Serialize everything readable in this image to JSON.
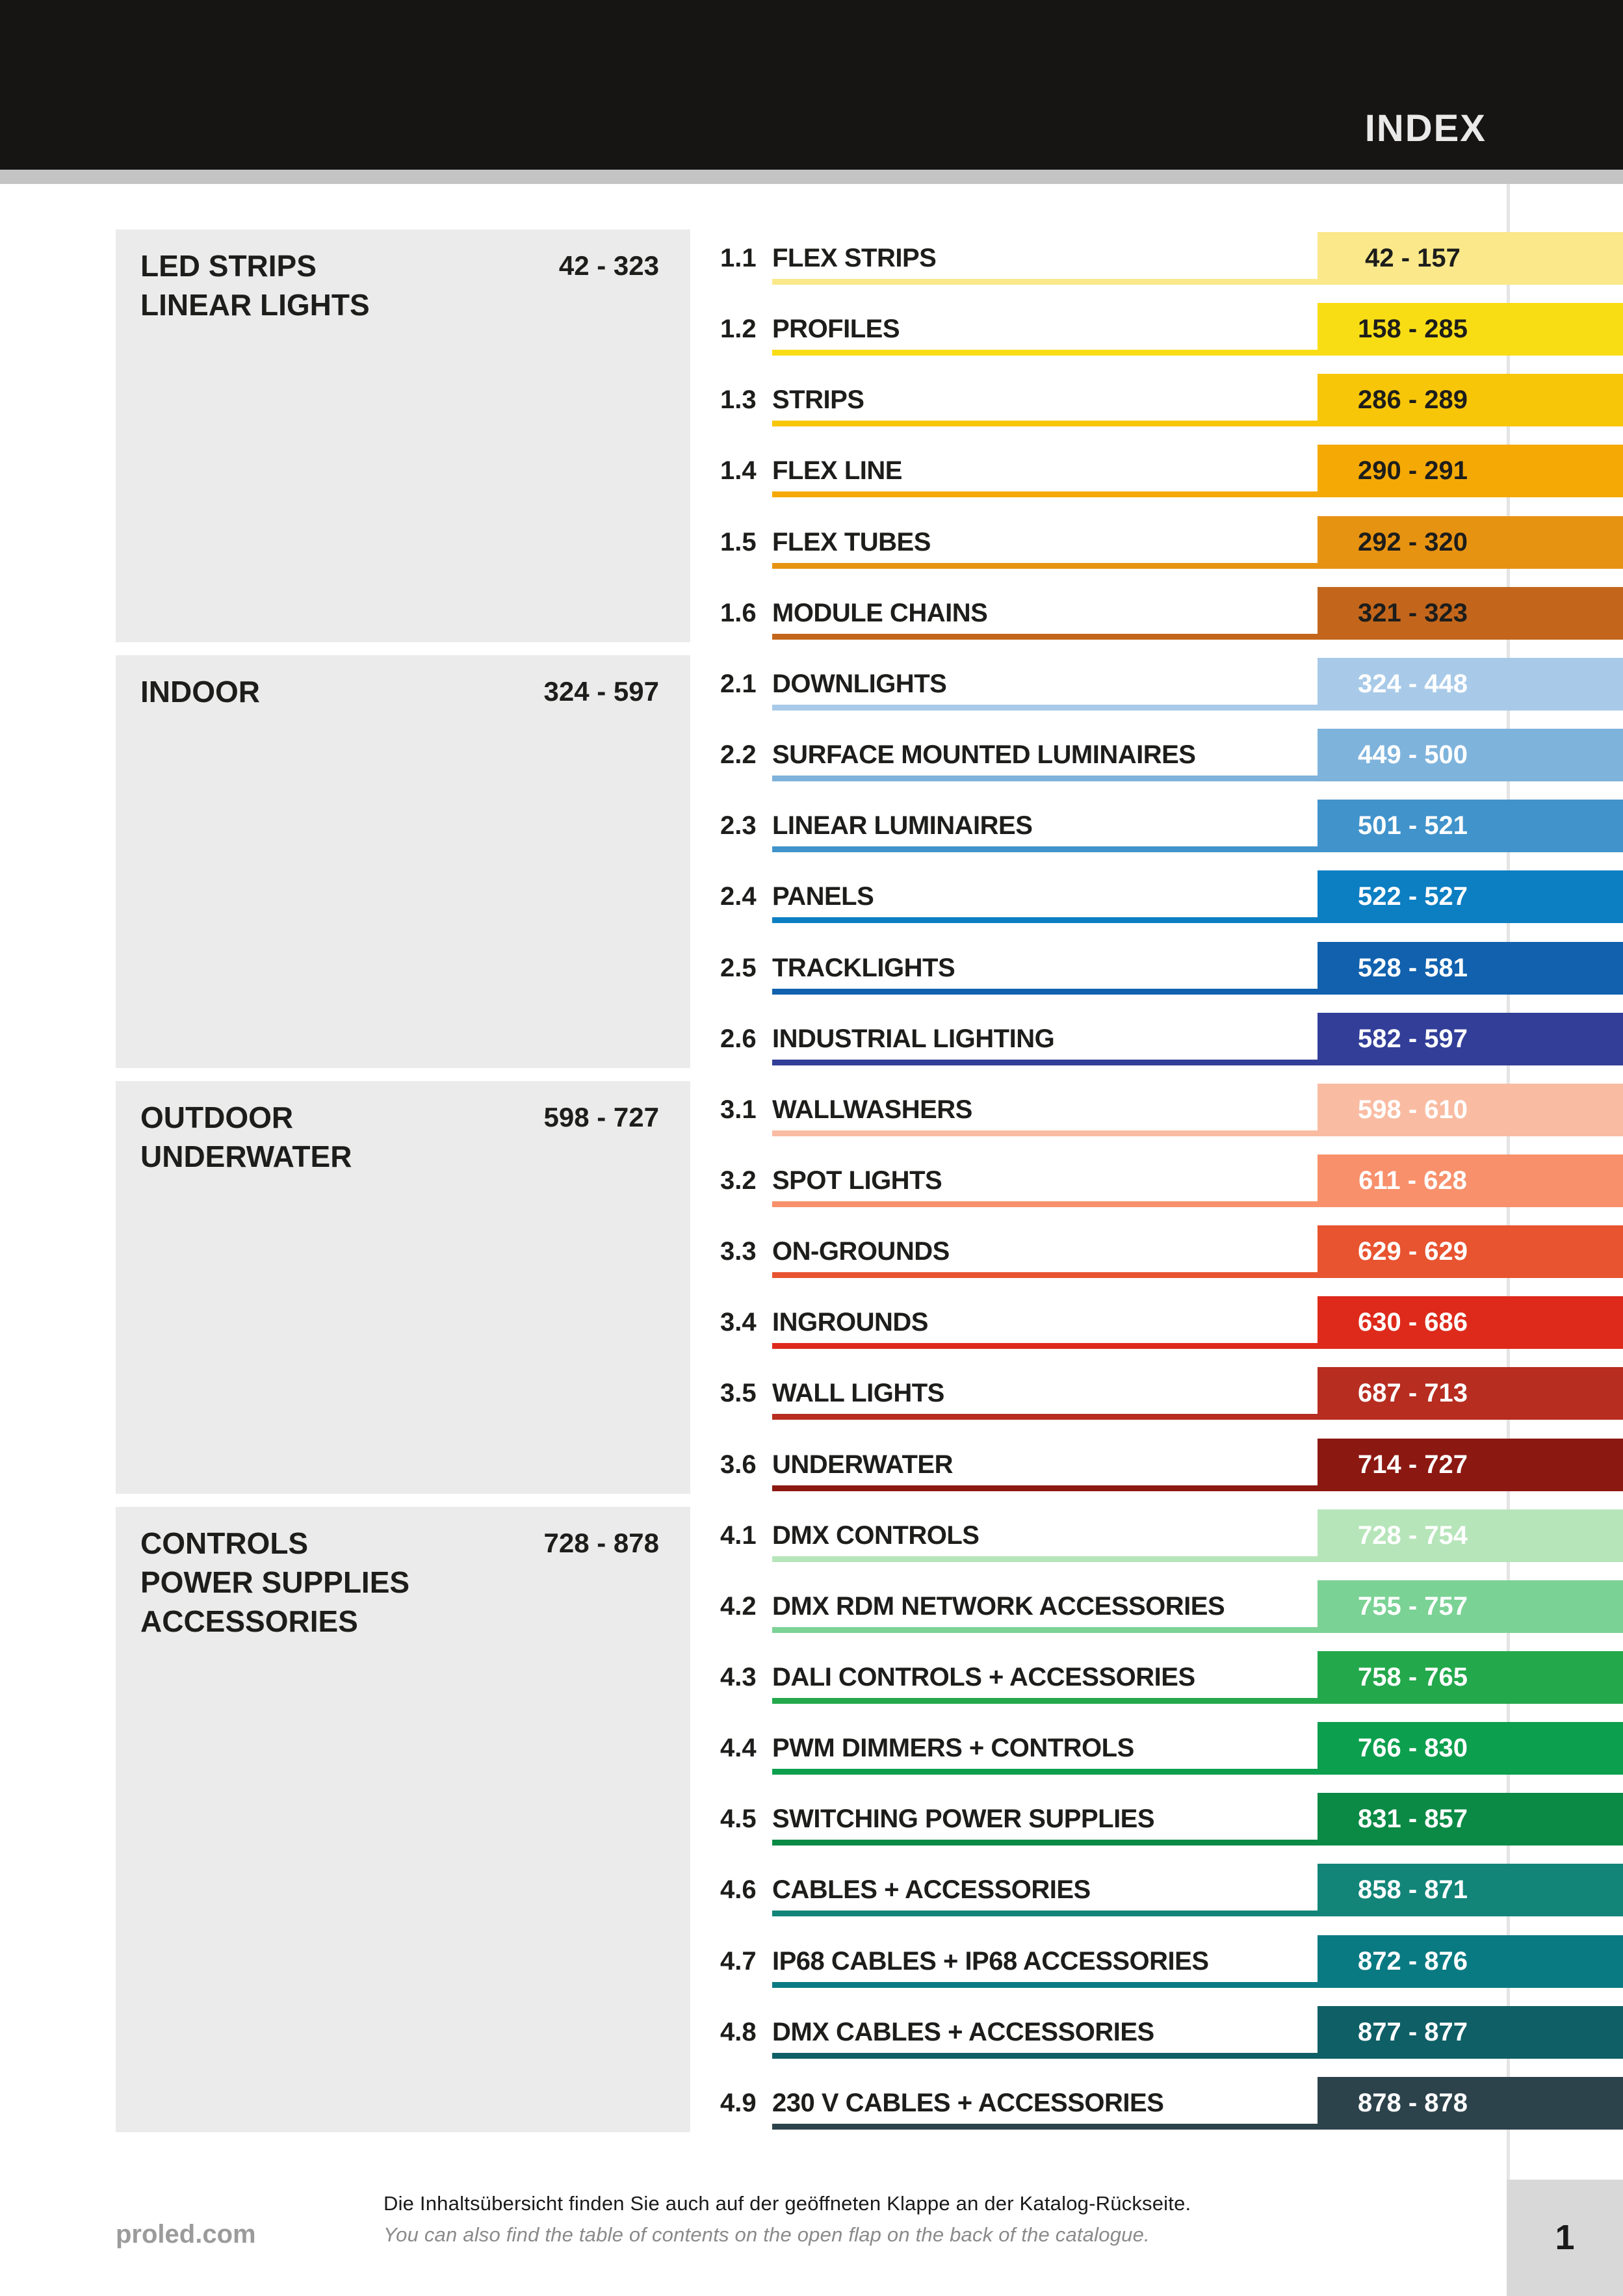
{
  "header": {
    "title": "INDEX",
    "bar_color": "#161514",
    "title_color": "#e9e9e9",
    "strip_color": "#c4c4c4"
  },
  "page": {
    "background": "#ffffff",
    "divider_color": "#e4e4e4",
    "panel_color": "#ebebeb"
  },
  "sections": [
    {
      "title_lines": [
        "LED STRIPS",
        "LINEAR LIGHTS"
      ],
      "range": "42 - 323",
      "entry_text_color": "#1d1d1b",
      "entries": [
        {
          "num": "1.1",
          "label": "FLEX STRIPS",
          "pages": "42 - 157",
          "color": "#fae88a"
        },
        {
          "num": "1.2",
          "label": "PROFILES",
          "pages": "158 - 285",
          "color": "#f8dd15"
        },
        {
          "num": "1.3",
          "label": "STRIPS",
          "pages": "286 - 289",
          "color": "#f7c608"
        },
        {
          "num": "1.4",
          "label": "FLEX LINE",
          "pages": "290 - 291",
          "color": "#f5a905"
        },
        {
          "num": "1.5",
          "label": "FLEX TUBES",
          "pages": "292 - 320",
          "color": "#e79312"
        },
        {
          "num": "1.6",
          "label": "MODULE CHAINS",
          "pages": "321 - 323",
          "color": "#c3661c"
        }
      ]
    },
    {
      "title_lines": [
        "INDOOR"
      ],
      "range": "324 - 597",
      "entry_text_color": "#ffffff",
      "entries": [
        {
          "num": "2.1",
          "label": "DOWNLIGHTS",
          "pages": "324 - 448",
          "color": "#a8cae8"
        },
        {
          "num": "2.2",
          "label": "SURFACE MOUNTED LUMINAIRES",
          "pages": "449 - 500",
          "color": "#7eb3dc"
        },
        {
          "num": "2.3",
          "label": "LINEAR LUMINAIRES",
          "pages": "501 - 521",
          "color": "#4193cb"
        },
        {
          "num": "2.4",
          "label": "PANELS",
          "pages": "522 - 527",
          "color": "#0c7ec2"
        },
        {
          "num": "2.5",
          "label": "TRACKLIGHTS",
          "pages": "528 - 581",
          "color": "#1161ae"
        },
        {
          "num": "2.6",
          "label": "INDUSTRIAL LIGHTING",
          "pages": "582 - 597",
          "color": "#323e98"
        }
      ]
    },
    {
      "title_lines": [
        "OUTDOOR",
        "UNDERWATER"
      ],
      "range": "598 - 727",
      "entry_text_color": "#ffffff",
      "entries": [
        {
          "num": "3.1",
          "label": "WALLWASHERS",
          "pages": "598 - 610",
          "color": "#f9bca2"
        },
        {
          "num": "3.2",
          "label": "SPOT LIGHTS",
          "pages": "611 - 628",
          "color": "#f7906b"
        },
        {
          "num": "3.3",
          "label": "ON-GROUNDS",
          "pages": "629 - 629",
          "color": "#e85330"
        },
        {
          "num": "3.4",
          "label": "INGROUNDS",
          "pages": "630 - 686",
          "color": "#de2a1b"
        },
        {
          "num": "3.5",
          "label": "WALL LIGHTS",
          "pages": "687 - 713",
          "color": "#b72d20"
        },
        {
          "num": "3.6",
          "label": "UNDERWATER",
          "pages": "714 - 727",
          "color": "#8c1812"
        }
      ]
    },
    {
      "title_lines": [
        "CONTROLS",
        "POWER SUPPLIES",
        "ACCESSORIES"
      ],
      "range": "728 - 878",
      "entry_text_color": "#ffffff",
      "entries": [
        {
          "num": "4.1",
          "label": "DMX CONTROLS",
          "pages": "728 - 754",
          "color": "#b7e5ba"
        },
        {
          "num": "4.2",
          "label": "DMX RDM NETWORK ACCESSORIES",
          "pages": "755 - 757",
          "color": "#7bd295"
        },
        {
          "num": "4.3",
          "label": "DALI CONTROLS + ACCESSORIES",
          "pages": "758 - 765",
          "color": "#23a84b"
        },
        {
          "num": "4.4",
          "label": "PWM DIMMERS + CONTROLS",
          "pages": "766 - 830",
          "color": "#0c9f4e"
        },
        {
          "num": "4.5",
          "label": "SWITCHING POWER SUPPLIES",
          "pages": "831 - 857",
          "color": "#0b8a45"
        },
        {
          "num": "4.6",
          "label": "CABLES + ACCESSORIES",
          "pages": "858 - 871",
          "color": "#128578"
        },
        {
          "num": "4.7",
          "label": "IP68 CABLES + IP68 ACCESSORIES",
          "pages": "872 - 876",
          "color": "#0a7a82"
        },
        {
          "num": "4.8",
          "label": "DMX CABLES + ACCESSORIES",
          "pages": "877 - 877",
          "color": "#0f5f66"
        },
        {
          "num": "4.9",
          "label": "230 V CABLES + ACCESSORIES",
          "pages": "878 - 878",
          "color": "#2c434c"
        }
      ]
    }
  ],
  "footer": {
    "website": "proled.com",
    "line_de": "Die Inhaltsübersicht finden Sie auch auf der geöffneten Klappe an der Katalog-Rückseite.",
    "line_en": "You can also find the table of contents on the open flap on the back of the catalogue.",
    "page_number": "1",
    "tab_color": "#d8d8d8"
  }
}
